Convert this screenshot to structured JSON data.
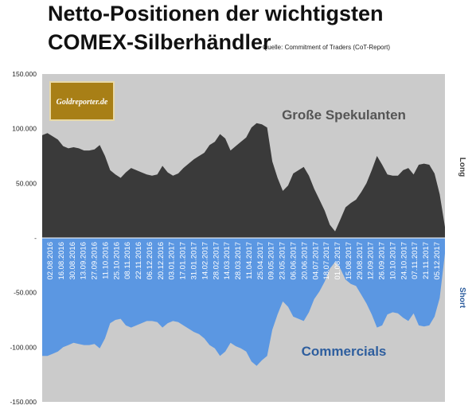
{
  "title_line1": "Netto-Positionen der wichtigsten",
  "title_line2": "COMEX-Silberhändler",
  "source": "Quelle: Commitment of Traders (CoT-Report)",
  "logo_text": "Goldreporter.de",
  "colors": {
    "plot_bg": "#cbcbcb",
    "speculators": "#3a3a3a",
    "commercials": "#5b97e2",
    "commercials_label": "#2e5e9e",
    "speculators_label": "#555555",
    "logo_bg": "#a87f16"
  },
  "chart_data": {
    "type": "area",
    "ylim": [
      -150000,
      150000
    ],
    "yticks": [
      "150.000",
      "100.000",
      "50.000",
      "-",
      "-50.000",
      "-100.000",
      "-150.000"
    ],
    "ytick_values": [
      150000,
      100000,
      50000,
      0,
      -50000,
      -100000,
      -150000
    ],
    "grid": false,
    "right_labels": {
      "top": "Long",
      "bottom": "Short"
    },
    "x_labels": [
      "02.08.2016",
      "16.08.2016",
      "30.08.2016",
      "13.09.2016",
      "27.09.2016",
      "11.10.2016",
      "25.10.2016",
      "08.11.2016",
      "22.11.2016",
      "06.12.2016",
      "20.12.2016",
      "03.01.2017",
      "17.01.2017",
      "31.01.2017",
      "14.02.2017",
      "28.02.2017",
      "14.03.2017",
      "28.03.2017",
      "11.04.2017",
      "25.04.2017",
      "09.05.2017",
      "23.05.2017",
      "06.06.2017",
      "20.06.2017",
      "04.07.2017",
      "18.07.2017",
      "01.08.2017",
      "15.08.2017",
      "29.08.2017",
      "12.09.2017",
      "26.09.2017",
      "10.10.2017",
      "24.10.2017",
      "07.11.2017",
      "21.11.2017",
      "05.12.2017"
    ],
    "series": [
      {
        "name": "Große Spekulanten",
        "values": [
          94000,
          96000,
          93000,
          90000,
          84000,
          82000,
          83000,
          82000,
          80000,
          80000,
          81000,
          85000,
          75000,
          62000,
          58000,
          55000,
          60000,
          64000,
          62000,
          60000,
          58000,
          57000,
          58000,
          66000,
          60000,
          57000,
          59000,
          64000,
          68000,
          72000,
          75000,
          78000,
          85000,
          88000,
          95000,
          91000,
          80000,
          84000,
          88000,
          92000,
          101000,
          105000,
          104000,
          101000,
          70000,
          55000,
          43000,
          48000,
          59000,
          62000,
          65000,
          57000,
          45000,
          35000,
          25000,
          12000,
          6000,
          17000,
          28000,
          32000,
          35000,
          42000,
          50000,
          62000,
          75000,
          67000,
          58000,
          57000,
          57000,
          62000,
          64000,
          58000,
          67000,
          68000,
          67000,
          59000,
          40000,
          10000
        ]
      },
      {
        "name": "Commercials",
        "values": [
          -108000,
          -108000,
          -106000,
          -104000,
          -100000,
          -98000,
          -96000,
          -97000,
          -98000,
          -98000,
          -97000,
          -101000,
          -92000,
          -78000,
          -75000,
          -74000,
          -80000,
          -82000,
          -80000,
          -78000,
          -76000,
          -76000,
          -77000,
          -82000,
          -78000,
          -76000,
          -77000,
          -80000,
          -83000,
          -86000,
          -88000,
          -92000,
          -98000,
          -101000,
          -108000,
          -104000,
          -96000,
          -99000,
          -101000,
          -104000,
          -113000,
          -117000,
          -112000,
          -108000,
          -84000,
          -70000,
          -58000,
          -63000,
          -72000,
          -74000,
          -76000,
          -68000,
          -56000,
          -49000,
          -40000,
          -28000,
          -22000,
          -28000,
          -38000,
          -42000,
          -44000,
          -52000,
          -60000,
          -70000,
          -82000,
          -80000,
          -70000,
          -68000,
          -69000,
          -73000,
          -76000,
          -69000,
          -80000,
          -81000,
          -80000,
          -72000,
          -55000,
          -14000
        ]
      }
    ]
  }
}
